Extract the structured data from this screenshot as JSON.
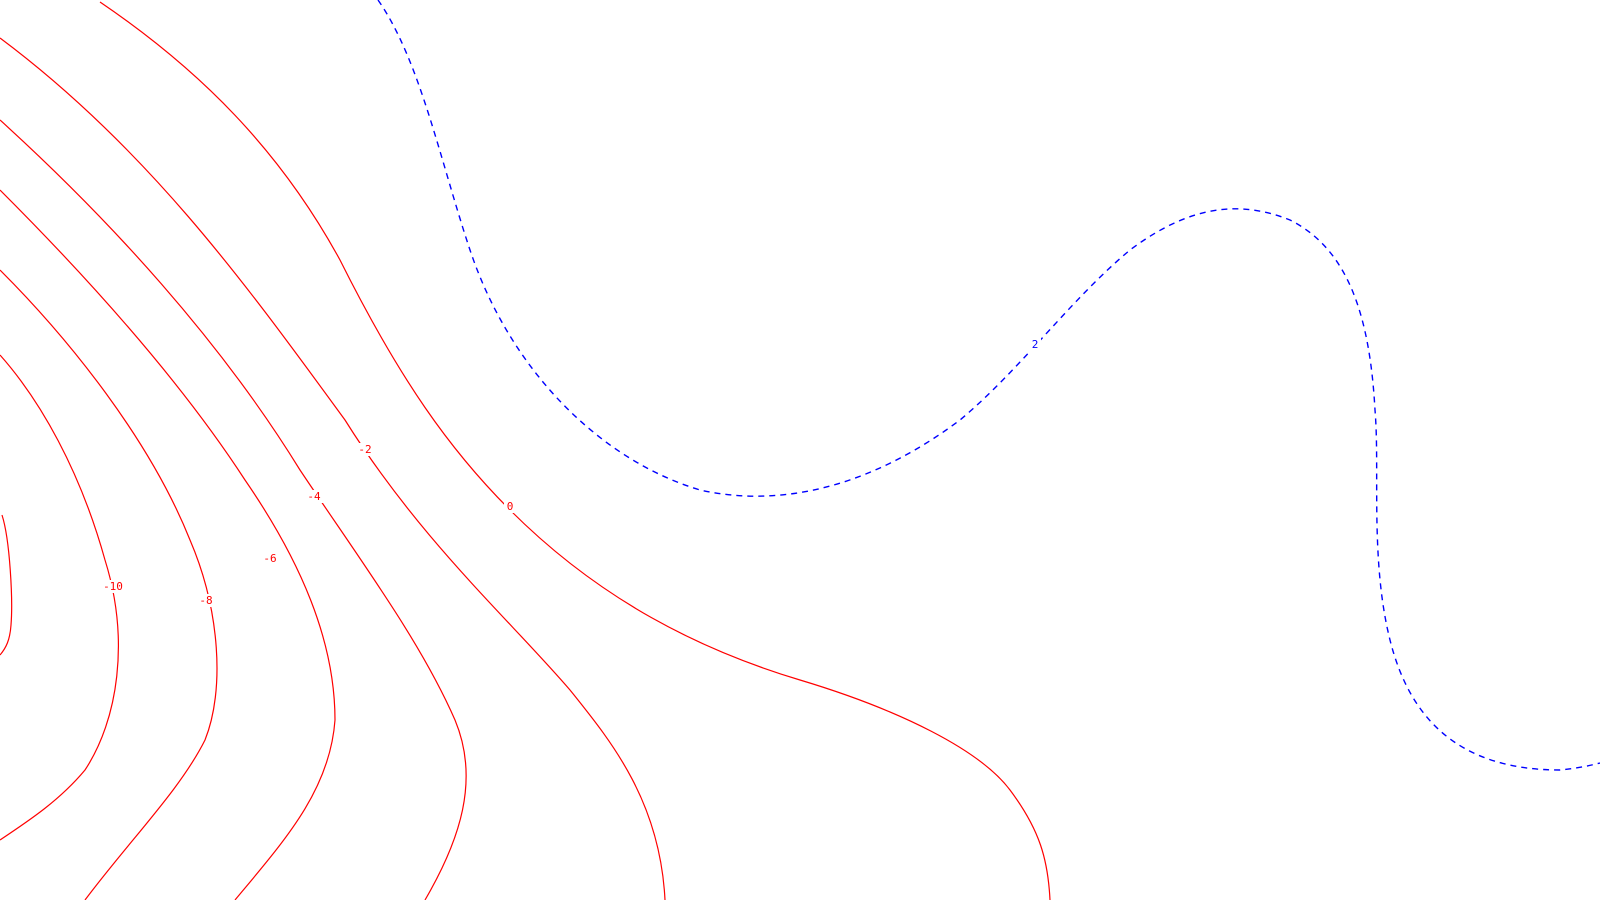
{
  "map": {
    "background_color": "#ffffff",
    "negative_color": "#ff0000",
    "positive_color": "#0000ff",
    "negative_style": "solid",
    "positive_style": "dashed"
  },
  "contours": [
    {
      "id": "-12",
      "label": "",
      "style": "solid"
    },
    {
      "id": "-10",
      "label": "-10",
      "style": "solid"
    },
    {
      "id": "-8",
      "label": "-8",
      "style": "solid"
    },
    {
      "id": "-6",
      "label": "-6",
      "style": "solid"
    },
    {
      "id": "-4",
      "label": "-4",
      "style": "solid"
    },
    {
      "id": "-2",
      "label": "-2",
      "style": "solid"
    },
    {
      "id": "0",
      "label": "0",
      "style": "solid"
    },
    {
      "id": "2",
      "label": "2",
      "style": "dashed"
    }
  ]
}
